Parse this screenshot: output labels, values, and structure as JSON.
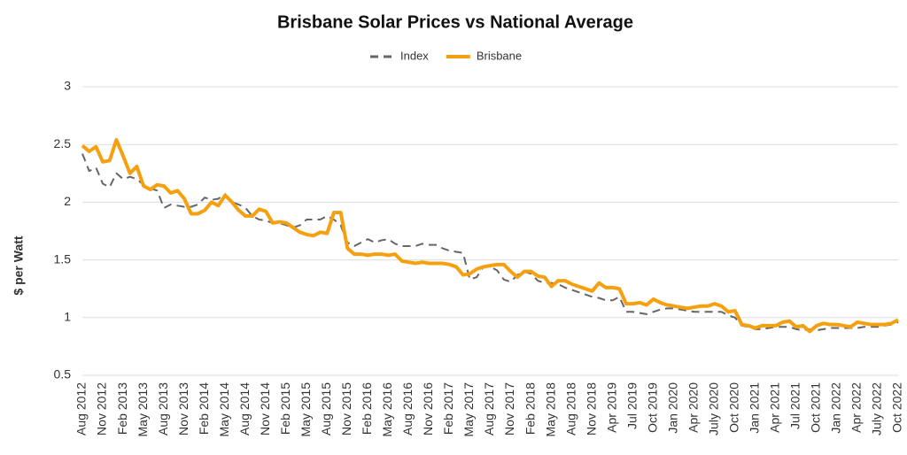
{
  "chart_data": {
    "type": "line",
    "title": "Brisbane Solar Prices vs National Average",
    "y_label": "$ per Watt",
    "categories": [
      "Aug 2012",
      null,
      null,
      "Nov 2012",
      null,
      null,
      "Feb 2013",
      null,
      null,
      "May 2013",
      null,
      null,
      "Aug 2013",
      null,
      null,
      "Nov 2013",
      null,
      null,
      "Feb 2014",
      null,
      null,
      "May 2014",
      null,
      null,
      "Aug 2014",
      null,
      null,
      "Nov 2014",
      null,
      null,
      "Feb 2015",
      null,
      null,
      "May 2015",
      null,
      null,
      "Aug 2015",
      null,
      null,
      "Nov 2015",
      null,
      null,
      "Feb 2016",
      null,
      null,
      "May 2016",
      null,
      null,
      "Aug 2016",
      null,
      null,
      "Nov 2016",
      null,
      null,
      "Feb 2017",
      null,
      null,
      "May 2017",
      null,
      null,
      "Aug 2017",
      null,
      null,
      "Nov 2017",
      null,
      null,
      "Feb 2018",
      null,
      null,
      "May 2018",
      null,
      null,
      "Aug 2018",
      null,
      null,
      "Nov 2018",
      null,
      null,
      "Apr 2019",
      null,
      null,
      "Jul 2019",
      null,
      null,
      "Oct 2019",
      null,
      null,
      "Jan 2020",
      null,
      null,
      "Apr 2020",
      null,
      null,
      "July 2020",
      null,
      null,
      "Oct 2020",
      null,
      null,
      "Jan 2021",
      null,
      null,
      "Apr 2021",
      null,
      null,
      "Jul 2021",
      null,
      null,
      "Oct 2021",
      null,
      null,
      "Jan 2022",
      null,
      null,
      "Apr 2022",
      null,
      null,
      "July 2022",
      null,
      null,
      "Oct 2022"
    ],
    "series": [
      {
        "name": "Index",
        "color": "#666666",
        "dashed": true,
        "values": [
          2.42,
          2.27,
          2.3,
          2.16,
          2.13,
          2.25,
          2.2,
          2.22,
          2.2,
          2.15,
          2.12,
          2.1,
          1.95,
          1.98,
          1.97,
          1.96,
          1.96,
          1.98,
          2.04,
          2.02,
          2.03,
          2.07,
          2.0,
          1.98,
          1.95,
          1.88,
          1.85,
          1.84,
          1.82,
          1.82,
          1.8,
          1.78,
          1.8,
          1.85,
          1.85,
          1.85,
          1.88,
          1.85,
          1.8,
          1.65,
          1.62,
          1.65,
          1.68,
          1.65,
          1.67,
          1.68,
          1.64,
          1.62,
          1.62,
          1.62,
          1.64,
          1.63,
          1.63,
          1.6,
          1.58,
          1.57,
          1.56,
          1.33,
          1.35,
          1.44,
          1.44,
          1.41,
          1.33,
          1.31,
          1.37,
          1.4,
          1.38,
          1.32,
          1.3,
          1.3,
          1.29,
          1.26,
          1.24,
          1.22,
          1.2,
          1.18,
          1.17,
          1.15,
          1.15,
          1.18,
          1.05,
          1.05,
          1.04,
          1.03,
          1.05,
          1.07,
          1.08,
          1.08,
          1.07,
          1.06,
          1.05,
          1.05,
          1.05,
          1.05,
          1.05,
          1.02,
          1.0,
          0.93,
          0.92,
          0.9,
          0.9,
          0.91,
          0.92,
          0.92,
          0.92,
          0.9,
          0.89,
          0.9,
          0.89,
          0.9,
          0.91,
          0.91,
          0.91,
          0.91,
          0.91,
          0.92,
          0.92,
          0.92,
          0.93,
          0.94,
          0.96
        ]
      },
      {
        "name": "Brisbane",
        "color": "#f5a00f",
        "dashed": false,
        "values": [
          2.49,
          2.44,
          2.48,
          2.35,
          2.36,
          2.54,
          2.4,
          2.25,
          2.31,
          2.14,
          2.11,
          2.15,
          2.14,
          2.08,
          2.1,
          2.03,
          1.9,
          1.9,
          1.93,
          2.0,
          1.97,
          2.06,
          2.0,
          1.93,
          1.88,
          1.88,
          1.94,
          1.92,
          1.82,
          1.83,
          1.82,
          1.78,
          1.74,
          1.72,
          1.71,
          1.74,
          1.73,
          1.91,
          1.91,
          1.6,
          1.55,
          1.55,
          1.54,
          1.55,
          1.55,
          1.54,
          1.55,
          1.49,
          1.48,
          1.47,
          1.48,
          1.47,
          1.47,
          1.47,
          1.46,
          1.44,
          1.37,
          1.38,
          1.42,
          1.44,
          1.45,
          1.46,
          1.46,
          1.4,
          1.35,
          1.4,
          1.4,
          1.36,
          1.35,
          1.27,
          1.32,
          1.32,
          1.29,
          1.27,
          1.25,
          1.23,
          1.3,
          1.26,
          1.26,
          1.25,
          1.12,
          1.12,
          1.13,
          1.11,
          1.16,
          1.13,
          1.11,
          1.1,
          1.09,
          1.08,
          1.09,
          1.1,
          1.1,
          1.12,
          1.1,
          1.05,
          1.06,
          0.94,
          0.93,
          0.91,
          0.93,
          0.93,
          0.93,
          0.96,
          0.97,
          0.92,
          0.93,
          0.88,
          0.93,
          0.95,
          0.94,
          0.94,
          0.93,
          0.92,
          0.96,
          0.95,
          0.94,
          0.94,
          0.94,
          0.95,
          0.98
        ]
      }
    ],
    "ylim": [
      0.5,
      3
    ],
    "yticks": [
      0.5,
      1,
      1.5,
      2,
      2.5,
      3
    ],
    "grid": true,
    "legend": "top"
  }
}
